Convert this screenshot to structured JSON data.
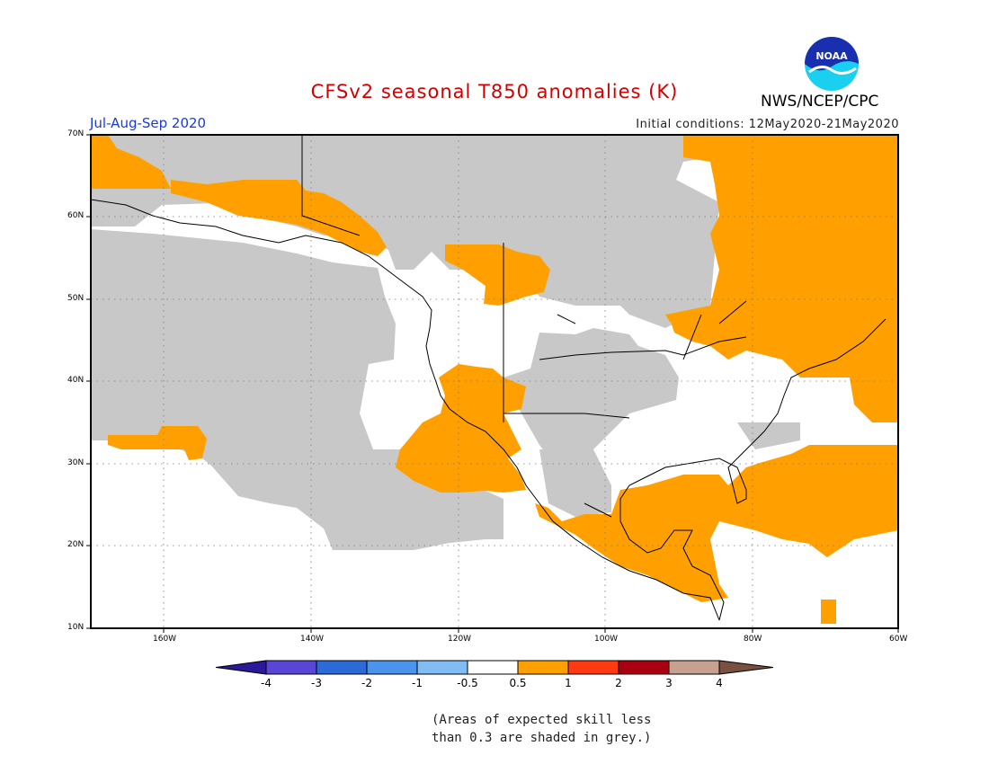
{
  "header": {
    "title": "CFSv2 seasonal T850 anomalies (K)",
    "organization": "NWS/NCEP/CPC",
    "logo_text": "NOAA",
    "season": "Jul-Aug-Sep 2020",
    "initial_conditions": "Initial conditions: 12May2020-21May2020"
  },
  "map": {
    "lat_labels": [
      "70N",
      "60N",
      "50N",
      "40N",
      "30N",
      "20N",
      "10N"
    ],
    "lon_labels": [
      "160W",
      "140W",
      "120W",
      "100W",
      "80W",
      "60W"
    ],
    "colors": {
      "skill_grey": "#c8c8c8",
      "anomaly_orange": "#ffa000",
      "coast": "#000000"
    }
  },
  "colorbar": {
    "labels": [
      "-4",
      "-3",
      "-2",
      "-1",
      "-0.5",
      "0.5",
      "1",
      "2",
      "3",
      "4"
    ],
    "colors": [
      "#2a1a9a",
      "#5a46d6",
      "#2c6ad8",
      "#4a94ee",
      "#82bcf4",
      "#ffffff",
      "#ffa000",
      "#ff3a10",
      "#a80010",
      "#c8a090",
      "#7a5040"
    ]
  },
  "note": {
    "line1": "(Areas of expected skill less",
    "line2": "than 0.3 are shaded in grey.)"
  }
}
